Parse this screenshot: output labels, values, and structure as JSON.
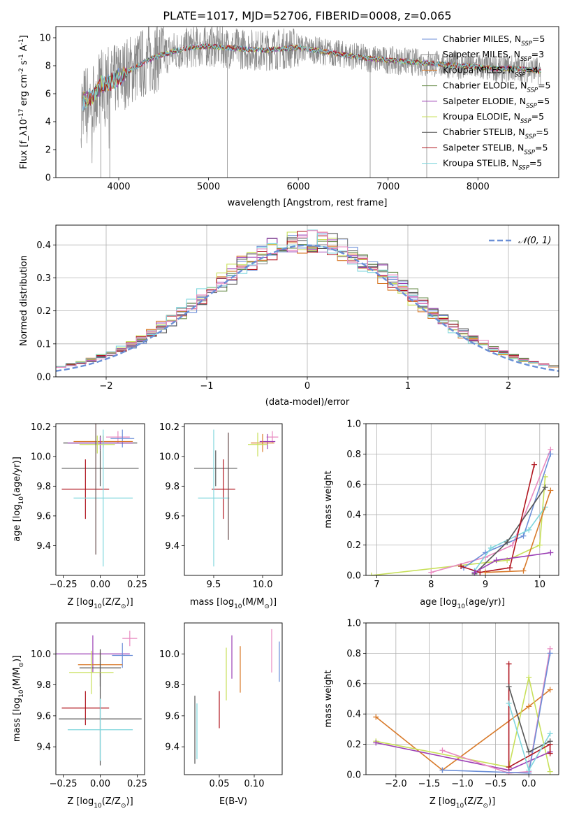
{
  "figure_title": "PLATE=1017, MJD=52706, FIBERID=0008, z=0.065",
  "colors": {
    "Chabrier MILES": "#6c8fd8",
    "Salpeter MILES": "#8a8a8a",
    "Kroupa MILES": "#d87a2a",
    "Chabrier ELODIE": "#6b8e4e",
    "Salpeter ELODIE": "#9b3fb5",
    "Kroupa ELODIE": "#c8e05a",
    "Chabrier STELIB": "#555555",
    "Salpeter STELIB": "#b0141e",
    "Kroupa STELIB": "#7fd6dd",
    "pink": "#e88ac0"
  },
  "chart_data": [
    {
      "id": "spectrum",
      "type": "line",
      "xlabel": "wavelength [Angstrom, rest frame]",
      "ylabel": "Flux [f$_\\lambda$10$^{-17}$ erg cm$^{-2}$ s$^{-1}$ A$^{-1}$]",
      "xlim": [
        3300,
        8900
      ],
      "ylim": [
        0,
        10.8
      ],
      "xticks": [
        4000,
        5000,
        6000,
        7000,
        8000
      ],
      "yticks": [
        0,
        2,
        4,
        6,
        8,
        10
      ],
      "legend_position": "right",
      "legend": [
        {
          "label": "Chabrier MILES, N",
          "sub": "SSP",
          "tail": "=5",
          "color": "#6c8fd8"
        },
        {
          "label": "Salpeter MILES, N",
          "sub": "SSP",
          "tail": "=3",
          "color": "#8a8a8a"
        },
        {
          "label": "Kroupa MILES, N",
          "sub": "SSP",
          "tail": "=4",
          "color": "#d87a2a"
        },
        {
          "label": "Chabrier ELODIE, N",
          "sub": "SSP",
          "tail": "=5",
          "color": "#6b8e4e"
        },
        {
          "label": "Salpeter ELODIE, N",
          "sub": "SSP",
          "tail": "=5",
          "color": "#9b3fb5"
        },
        {
          "label": "Kroupa ELODIE, N",
          "sub": "SSP",
          "tail": "=5",
          "color": "#c8e05a"
        },
        {
          "label": "Chabrier STELIB, N",
          "sub": "SSP",
          "tail": "=5",
          "color": "#555555"
        },
        {
          "label": "Salpeter STELIB, N",
          "sub": "SSP",
          "tail": "=5",
          "color": "#b0141e"
        },
        {
          "label": "Kroupa STELIB, N",
          "sub": "SSP",
          "tail": "=5",
          "color": "#7fd6dd"
        }
      ],
      "continuum": {
        "x": [
          3600,
          3700,
          3800,
          3900,
          4000,
          4100,
          4200,
          4300,
          4400,
          4500,
          4600,
          4800,
          5000,
          5200,
          5400,
          5600,
          5800,
          6000,
          6200,
          6400,
          6600,
          6800,
          7000,
          7200,
          7400,
          7600,
          7800,
          8000,
          8200,
          8400,
          8600,
          8700
        ],
        "y": [
          5.4,
          5.8,
          6.6,
          6.8,
          7.1,
          7.6,
          7.9,
          8.3,
          8.6,
          8.8,
          9.0,
          9.3,
          9.4,
          9.3,
          9.2,
          9.1,
          9.2,
          9.3,
          9.1,
          8.9,
          8.7,
          8.5,
          8.4,
          8.3,
          8.2,
          8.1,
          8.0,
          7.9,
          7.8,
          7.8,
          7.7,
          7.6
        ]
      },
      "dips": [
        {
          "x": 3800,
          "y": 0.0
        },
        {
          "x": 3900,
          "y": 0.0
        },
        {
          "x": 5210,
          "y": 0.0
        },
        {
          "x": 6800,
          "y": 0.0
        },
        {
          "x": 7430,
          "y": 0.0
        }
      ]
    },
    {
      "id": "residual-histogram",
      "type": "histogram",
      "xlabel": "(data-model)/error",
      "ylabel": "Normed distribution",
      "xlim": [
        -2.5,
        2.5
      ],
      "ylim": [
        0,
        0.46
      ],
      "xticks": [
        -2,
        -1,
        0,
        1,
        2
      ],
      "yticks": [
        0.0,
        0.1,
        0.2,
        0.3,
        0.4
      ],
      "grid": true,
      "legend_position": "top-right",
      "legend_label": "𝒩(0, 1)",
      "gaussian": {
        "mean": 0,
        "sigma": 1,
        "color": "#6a8fd6"
      },
      "bin_width": 0.1,
      "bin_start": -2.5
    },
    {
      "id": "age-vs-Z",
      "type": "errorbar",
      "xlabel": "Z [log$_{10}$($Z/Z_\\odot$)]",
      "ylabel": "age  [log$_{10}$($age/yr$)]",
      "xlim": [
        -0.3,
        0.3
      ],
      "ylim": [
        9.2,
        10.22
      ],
      "xticks": [
        -0.25,
        0.0,
        0.25
      ],
      "yticks": [
        9.4,
        9.6,
        9.8,
        10.0,
        10.2
      ],
      "points": [
        {
          "x": 0.12,
          "y": 10.13,
          "xerr": 0.08,
          "yerr": 0.04,
          "color": "#e88ac0"
        },
        {
          "x": 0.15,
          "y": 10.12,
          "xerr": 0.08,
          "yerr": 0.06,
          "color": "#6c8fd8"
        },
        {
          "x": 0.0,
          "y": 10.09,
          "xerr": 0.25,
          "yerr": 0.05,
          "color": "#555555"
        },
        {
          "x": 0.02,
          "y": 10.1,
          "xerr": 0.2,
          "yerr": 0.04,
          "color": "#d87a2a"
        },
        {
          "x": 0.0,
          "y": 10.09,
          "xerr": 0.22,
          "yerr": 0.04,
          "color": "#9b3fb5"
        },
        {
          "x": -0.02,
          "y": 10.08,
          "xerr": 0.12,
          "yerr": 0.06,
          "color": "#c8e05a"
        },
        {
          "x": 0.0,
          "y": 9.92,
          "xerr": 0.26,
          "yerr": 0.12,
          "color": "#555555"
        },
        {
          "x": -0.1,
          "y": 9.78,
          "xerr": 0.16,
          "yerr": 0.2,
          "color": "#b0141e"
        },
        {
          "x": 0.02,
          "y": 9.72,
          "xerr": 0.2,
          "yerr": 0.46,
          "color": "#7fd6dd"
        },
        {
          "x": -0.03,
          "y": 9.78,
          "xerr": 0.0,
          "yerr": 0.44,
          "color": "#6b5050"
        }
      ]
    },
    {
      "id": "age-vs-mass",
      "type": "errorbar",
      "xlabel": "mass [log$_{10}$($M/M_\\odot$)]",
      "ylabel": "",
      "xlim": [
        9.2,
        10.2
      ],
      "ylim": [
        9.2,
        10.22
      ],
      "xticks": [
        9.5,
        10.0
      ],
      "yticks": [
        9.4,
        9.6,
        9.8,
        10.0,
        10.2
      ],
      "points": [
        {
          "x": 10.1,
          "y": 10.13,
          "xerr": 0.06,
          "yerr": 0.04,
          "color": "#e88ac0"
        },
        {
          "x": 10.05,
          "y": 10.1,
          "xerr": 0.08,
          "yerr": 0.05,
          "color": "#9b3fb5"
        },
        {
          "x": 10.0,
          "y": 10.09,
          "xerr": 0.12,
          "yerr": 0.06,
          "color": "#d87a2a"
        },
        {
          "x": 9.95,
          "y": 10.08,
          "xerr": 0.1,
          "yerr": 0.08,
          "color": "#c8e05a"
        },
        {
          "x": 9.52,
          "y": 9.92,
          "xerr": 0.22,
          "yerr": 0.12,
          "color": "#555555"
        },
        {
          "x": 9.6,
          "y": 9.78,
          "xerr": 0.12,
          "yerr": 0.2,
          "color": "#b0141e"
        },
        {
          "x": 9.5,
          "y": 9.72,
          "xerr": 0.16,
          "yerr": 0.46,
          "color": "#7fd6dd"
        },
        {
          "x": 9.65,
          "y": 9.8,
          "xerr": 0.0,
          "yerr": 0.36,
          "color": "#6b5050"
        }
      ]
    },
    {
      "id": "mass-weight-vs-age",
      "type": "line",
      "xlabel": "age  [log$_{10}$($age/yr$)]",
      "ylabel": "mass weight",
      "xlim": [
        6.8,
        10.35
      ],
      "ylim": [
        0,
        1.0
      ],
      "xticks": [
        7,
        8,
        9,
        10
      ],
      "yticks": [
        0.0,
        0.2,
        0.4,
        0.6,
        0.8,
        1.0
      ],
      "grid": true,
      "series": [
        {
          "color": "#c8e05a",
          "x": [
            6.9,
            9.4,
            10.0,
            10.1
          ],
          "y": [
            0.0,
            0.1,
            0.2,
            0.65
          ]
        },
        {
          "color": "#e88ac0",
          "x": [
            8.0,
            9.0,
            9.5,
            10.2
          ],
          "y": [
            0.02,
            0.12,
            0.2,
            0.83
          ]
        },
        {
          "color": "#6c8fd8",
          "x": [
            8.6,
            9.0,
            9.7,
            10.2
          ],
          "y": [
            0.05,
            0.15,
            0.26,
            0.8
          ]
        },
        {
          "color": "#7fd6dd",
          "x": [
            8.8,
            9.1,
            9.8,
            10.1
          ],
          "y": [
            0.03,
            0.18,
            0.3,
            0.45
          ]
        },
        {
          "color": "#555555",
          "x": [
            8.8,
            9.4,
            10.1
          ],
          "y": [
            0.01,
            0.22,
            0.58
          ]
        },
        {
          "color": "#b0141e",
          "x": [
            8.55,
            8.9,
            9.45,
            9.9
          ],
          "y": [
            0.06,
            0.02,
            0.05,
            0.73
          ]
        },
        {
          "color": "#d87a2a",
          "x": [
            9.0,
            9.7,
            10.2
          ],
          "y": [
            0.02,
            0.03,
            0.56
          ]
        },
        {
          "color": "#9b3fb5",
          "x": [
            8.8,
            9.2,
            10.2
          ],
          "y": [
            0.02,
            0.1,
            0.15
          ]
        }
      ]
    },
    {
      "id": "mass-vs-Z",
      "type": "errorbar",
      "xlabel": "Z [log$_{10}$($Z/Z_\\odot$)]",
      "ylabel": "mass [log$_{10}$($M/M_\\odot$)]",
      "xlim": [
        -0.3,
        0.3
      ],
      "ylim": [
        9.22,
        10.2
      ],
      "xticks": [
        -0.25,
        0.0,
        0.25
      ],
      "yticks": [
        9.4,
        9.6,
        9.8,
        10.0
      ],
      "points": [
        {
          "x": 0.2,
          "y": 10.1,
          "xerr": 0.05,
          "yerr": 0.05,
          "color": "#e88ac0"
        },
        {
          "x": -0.05,
          "y": 10.0,
          "xerr": 0.25,
          "yerr": 0.12,
          "color": "#9b3fb5"
        },
        {
          "x": 0.15,
          "y": 9.99,
          "xerr": 0.07,
          "yerr": 0.08,
          "color": "#6c8fd8"
        },
        {
          "x": 0.0,
          "y": 9.93,
          "xerr": 0.15,
          "yerr": 0.08,
          "color": "#d87a2a"
        },
        {
          "x": 0.0,
          "y": 9.91,
          "xerr": 0.14,
          "yerr": 0.12,
          "color": "#555555"
        },
        {
          "x": -0.06,
          "y": 9.88,
          "xerr": 0.15,
          "yerr": 0.14,
          "color": "#c8e05a"
        },
        {
          "x": -0.1,
          "y": 9.65,
          "xerr": 0.16,
          "yerr": 0.11,
          "color": "#b0141e"
        },
        {
          "x": 0.0,
          "y": 9.58,
          "xerr": 0.28,
          "yerr": 0.3,
          "color": "#555555"
        },
        {
          "x": 0.0,
          "y": 9.51,
          "xerr": 0.22,
          "yerr": 0.2,
          "color": "#7fd6dd"
        }
      ]
    },
    {
      "id": "mass-vs-EBV",
      "type": "errorbar",
      "xlabel": "E(B-V)",
      "ylabel": "",
      "xlim": [
        0.0,
        0.14
      ],
      "ylim": [
        9.22,
        10.2
      ],
      "xticks": [
        0.05,
        0.1
      ],
      "yticks": [
        9.4,
        9.6,
        9.8,
        10.0
      ],
      "points": [
        {
          "x": 0.125,
          "y": 10.02,
          "xerr": 0,
          "yerr": 0.14,
          "color": "#e88ac0"
        },
        {
          "x": 0.136,
          "y": 9.95,
          "xerr": 0,
          "yerr": 0.13,
          "color": "#6c8fd8"
        },
        {
          "x": 0.08,
          "y": 9.9,
          "xerr": 0,
          "yerr": 0.15,
          "color": "#d87a2a"
        },
        {
          "x": 0.068,
          "y": 9.98,
          "xerr": 0,
          "yerr": 0.14,
          "color": "#9b3fb5"
        },
        {
          "x": 0.06,
          "y": 9.87,
          "xerr": 0,
          "yerr": 0.17,
          "color": "#c8e05a"
        },
        {
          "x": 0.05,
          "y": 9.64,
          "xerr": 0,
          "yerr": 0.12,
          "color": "#b0141e"
        },
        {
          "x": 0.015,
          "y": 9.51,
          "xerr": 0,
          "yerr": 0.22,
          "color": "#555555"
        },
        {
          "x": 0.018,
          "y": 9.5,
          "xerr": 0,
          "yerr": 0.18,
          "color": "#7fd6dd"
        }
      ]
    },
    {
      "id": "mass-weight-vs-Z",
      "type": "line",
      "xlabel": "Z [log$_{10}$($Z/Z_\\odot$)]",
      "ylabel": "mass weight",
      "xlim": [
        -2.45,
        0.45
      ],
      "ylim": [
        0,
        1.0
      ],
      "xticks": [
        -2.0,
        -1.5,
        -1.0,
        -0.5,
        0.0
      ],
      "yticks": [
        0.0,
        0.2,
        0.4,
        0.6,
        0.8,
        1.0
      ],
      "grid": true,
      "series": [
        {
          "color": "#d87a2a",
          "x": [
            -2.3,
            -1.3,
            0.0,
            0.32
          ],
          "y": [
            0.38,
            0.03,
            0.45,
            0.56
          ]
        },
        {
          "color": "#c8e05a",
          "x": [
            -2.3,
            -0.3,
            0.0,
            0.32
          ],
          "y": [
            0.22,
            0.05,
            0.64,
            0.02
          ]
        },
        {
          "color": "#9b3fb5",
          "x": [
            -2.3,
            -0.3,
            0.32
          ],
          "y": [
            0.21,
            0.03,
            0.15
          ]
        },
        {
          "color": "#e88ac0",
          "x": [
            -1.3,
            -0.3,
            0.0,
            0.32
          ],
          "y": [
            0.16,
            0.01,
            0.02,
            0.83
          ]
        },
        {
          "color": "#6c8fd8",
          "x": [
            -1.3,
            0.0,
            0.32
          ],
          "y": [
            0.03,
            0.01,
            0.8
          ]
        },
        {
          "color": "#b0141e",
          "x": [
            -0.3,
            -0.3,
            0.32,
            0.32
          ],
          "y": [
            0.73,
            0.05,
            0.2,
            0.14
          ]
        },
        {
          "color": "#555555",
          "x": [
            -0.3,
            0.0,
            0.32
          ],
          "y": [
            0.58,
            0.15,
            0.22
          ]
        },
        {
          "color": "#7fd6dd",
          "x": [
            -0.3,
            0.0,
            0.32
          ],
          "y": [
            0.47,
            0.03,
            0.27
          ]
        }
      ]
    }
  ],
  "tick_labels": {
    "spectrum_x": [
      "4000",
      "5000",
      "6000",
      "7000",
      "8000"
    ],
    "spectrum_y": [
      "0",
      "2",
      "4",
      "6",
      "8",
      "10"
    ],
    "hist_x": [
      "−2",
      "−1",
      "0",
      "1",
      "2"
    ],
    "hist_y": [
      "0.0",
      "0.1",
      "0.2",
      "0.3",
      "0.4"
    ],
    "ageZ_x": [
      "−0.25",
      "0.00",
      "0.25"
    ],
    "ageZ_y": [
      "9.4",
      "9.6",
      "9.8",
      "10.0",
      "10.2"
    ],
    "agemass_x": [
      "9.5",
      "10.0"
    ],
    "mwage_x": [
      "7",
      "8",
      "9",
      "10"
    ],
    "mw_y": [
      "0.0",
      "0.2",
      "0.4",
      "0.6",
      "0.8",
      "1.0"
    ],
    "massZ_y": [
      "9.4",
      "9.6",
      "9.8",
      "10.0"
    ],
    "ebv_x": [
      "0.05",
      "0.10"
    ],
    "mwZ_x": [
      "−2.0",
      "−1.5",
      "−1.0",
      "−0.5",
      "0.0"
    ]
  }
}
